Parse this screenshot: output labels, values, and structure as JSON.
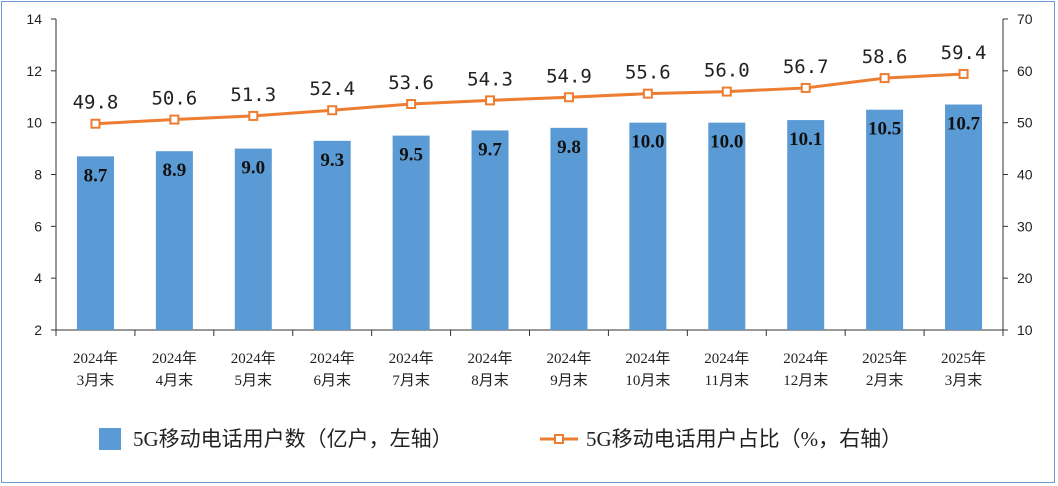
{
  "chart_data": {
    "type": "bar",
    "categories": [
      [
        "2024年",
        "3月末"
      ],
      [
        "2024年",
        "4月末"
      ],
      [
        "2024年",
        "5月末"
      ],
      [
        "2024年",
        "6月末"
      ],
      [
        "2024年",
        "7月末"
      ],
      [
        "2024年",
        "8月末"
      ],
      [
        "2024年",
        "9月末"
      ],
      [
        "2024年",
        "10月末"
      ],
      [
        "2024年",
        "11月末"
      ],
      [
        "2024年",
        "12月末"
      ],
      [
        "2025年",
        "2月末"
      ],
      [
        "2025年",
        "3月末"
      ]
    ],
    "series": [
      {
        "name": "5G移动电话用户数（亿户，左轴）",
        "type": "bar",
        "axis": "left",
        "color": "#5b9bd5",
        "values": [
          8.7,
          8.9,
          9.0,
          9.3,
          9.5,
          9.7,
          9.8,
          10.0,
          10.0,
          10.1,
          10.5,
          10.7
        ],
        "labels": [
          "8.7",
          "8.9",
          "9.0",
          "9.3",
          "9.5",
          "9.7",
          "9.8",
          "10.0",
          "10.0",
          "10.1",
          "10.5",
          "10.7"
        ]
      },
      {
        "name": "5G移动电话用户占比（%，右轴）",
        "type": "line",
        "axis": "right",
        "color": "#ed7d31",
        "values": [
          49.8,
          50.6,
          51.3,
          52.4,
          53.6,
          54.3,
          54.9,
          55.6,
          56.0,
          56.7,
          58.6,
          59.4
        ],
        "labels": [
          "49.8",
          "50.6",
          "51.3",
          "52.4",
          "53.6",
          "54.3",
          "54.9",
          "55.6",
          "56.0",
          "56.7",
          "58.6",
          "59.4"
        ]
      }
    ],
    "y_left": {
      "min": 2,
      "max": 14,
      "ticks": [
        "2",
        "4",
        "6",
        "8",
        "10",
        "12",
        "14"
      ]
    },
    "y_right": {
      "min": 10,
      "max": 70,
      "ticks": [
        "10",
        "20",
        "30",
        "40",
        "50",
        "60",
        "70"
      ]
    },
    "grid": false,
    "legend_position": "bottom"
  }
}
